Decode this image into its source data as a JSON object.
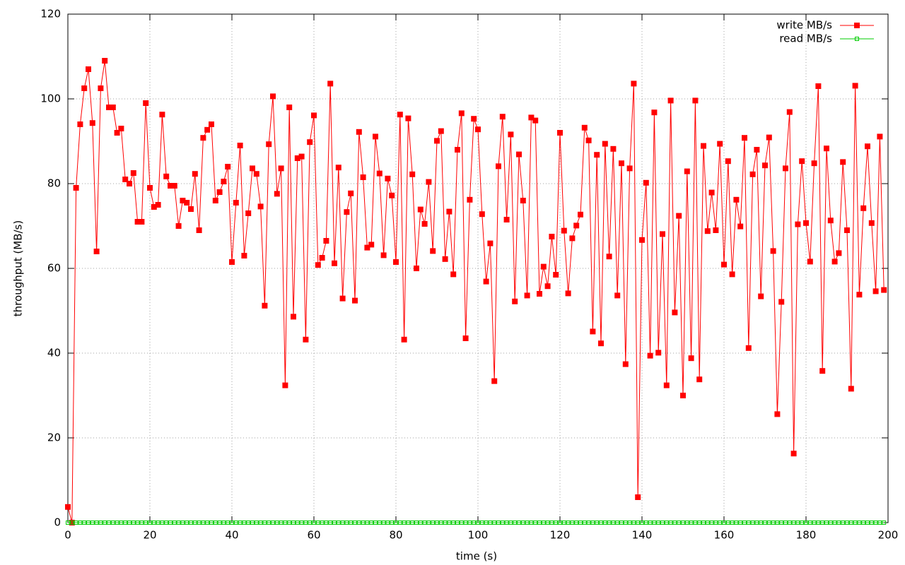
{
  "chart_data": {
    "type": "line",
    "xlabel": "time (s)",
    "ylabel": "throughput (MB/s)",
    "x": [
      0,
      1,
      2,
      3,
      4,
      5,
      6,
      7,
      8,
      9,
      10,
      11,
      12,
      13,
      14,
      15,
      16,
      17,
      18,
      19,
      20,
      21,
      22,
      23,
      24,
      25,
      26,
      27,
      28,
      29,
      30,
      31,
      32,
      33,
      34,
      35,
      36,
      37,
      38,
      39,
      40,
      41,
      42,
      43,
      44,
      45,
      46,
      47,
      48,
      49,
      50,
      51,
      52,
      53,
      54,
      55,
      56,
      57,
      58,
      59,
      60,
      61,
      62,
      63,
      64,
      65,
      66,
      67,
      68,
      69,
      70,
      71,
      72,
      73,
      74,
      75,
      76,
      77,
      78,
      79,
      80,
      81,
      82,
      83,
      84,
      85,
      86,
      87,
      88,
      89,
      90,
      91,
      92,
      93,
      94,
      95,
      96,
      97,
      98,
      99,
      100,
      101,
      102,
      103,
      104,
      105,
      106,
      107,
      108,
      109,
      110,
      111,
      112,
      113,
      114,
      115,
      116,
      117,
      118,
      119,
      120,
      121,
      122,
      123,
      124,
      125,
      126,
      127,
      128,
      129,
      130,
      131,
      132,
      133,
      134,
      135,
      136,
      137,
      138,
      139,
      140,
      141,
      142,
      143,
      144,
      145,
      146,
      147,
      148,
      149,
      150,
      151,
      152,
      153,
      154,
      155,
      156,
      157,
      158,
      159,
      160,
      161,
      162,
      163,
      164,
      165,
      166,
      167,
      168,
      169,
      170,
      171,
      172,
      173,
      174,
      175,
      176,
      177,
      178,
      179,
      180,
      181,
      182,
      183,
      184,
      185,
      186,
      187,
      188,
      189,
      190,
      191,
      192,
      193,
      194,
      195,
      196,
      197,
      198,
      199
    ],
    "series": [
      {
        "name": "write MB/s",
        "color": "#ff0000",
        "marker": "filled-square",
        "values": [
          3.7,
          0,
          79,
          94,
          102.5,
          107,
          94.3,
          64,
          102.5,
          109,
          98,
          98,
          92,
          93,
          81,
          80,
          82.5,
          71,
          71,
          99,
          79,
          74.5,
          75,
          96.3,
          81.7,
          79.5,
          79.5,
          70,
          76,
          75.5,
          74,
          82.3,
          69,
          90.8,
          92.7,
          94,
          76,
          78,
          80.5,
          84,
          61.5,
          75.5,
          89,
          63,
          73,
          83.6,
          82.3,
          74.6,
          51.2,
          89.3,
          100.6,
          77.6,
          83.6,
          32.4,
          98,
          48.6,
          86,
          86.4,
          43.2,
          89.8,
          96.1,
          60.8,
          62.5,
          66.5,
          103.6,
          61.2,
          83.8,
          52.9,
          73.3,
          77.7,
          52.4,
          92.2,
          81.5,
          64.9,
          65.6,
          91.1,
          82.4,
          63.1,
          81.2,
          77.2,
          61.5,
          96.3,
          43.2,
          95.4,
          82.2,
          60,
          73.9,
          70.5,
          80.4,
          64.1,
          90.1,
          92.4,
          62.2,
          73.4,
          58.6,
          88,
          96.6,
          43.5,
          76.2,
          95.3,
          92.8,
          72.8,
          56.9,
          65.9,
          33.4,
          84.1,
          95.8,
          71.5,
          91.6,
          52.2,
          86.9,
          76,
          53.6,
          95.6,
          94.9,
          54,
          60.4,
          55.8,
          67.5,
          58.5,
          92,
          68.9,
          54.1,
          67.1,
          70.1,
          72.7,
          93.2,
          90.2,
          45.1,
          86.8,
          42.3,
          89.4,
          62.8,
          88.2,
          53.6,
          84.8,
          37.4,
          83.6,
          103.6,
          6,
          66.7,
          80.2,
          39.4,
          96.8,
          40.1,
          68.1,
          32.4,
          99.6,
          49.6,
          72.4,
          30,
          82.9,
          38.8,
          99.6,
          33.8,
          88.9,
          68.8,
          77.9,
          69,
          89.4,
          60.9,
          85.3,
          58.6,
          76.2,
          69.9,
          90.8,
          41.2,
          82.2,
          88,
          53.4,
          84.3,
          90.9,
          64.1,
          25.6,
          52.1,
          83.6,
          96.9,
          16.3,
          70.4,
          85.3,
          70.7,
          61.6,
          84.8,
          103,
          35.8,
          88.3,
          71.3,
          61.6,
          63.6,
          85.1,
          69,
          31.6,
          103.1,
          53.8,
          74.2,
          88.8,
          70.7,
          54.6,
          91.1,
          54.9
        ]
      },
      {
        "name": "read MB/s",
        "color": "#00cc00",
        "marker": "open-square",
        "values": [
          0,
          0,
          0,
          0,
          0,
          0,
          0,
          0,
          0,
          0,
          0,
          0,
          0,
          0,
          0,
          0,
          0,
          0,
          0,
          0,
          0,
          0,
          0,
          0,
          0,
          0,
          0,
          0,
          0,
          0,
          0,
          0,
          0,
          0,
          0,
          0,
          0,
          0,
          0,
          0,
          0,
          0,
          0,
          0,
          0,
          0,
          0,
          0,
          0,
          0,
          0,
          0,
          0,
          0,
          0,
          0,
          0,
          0,
          0,
          0,
          0,
          0,
          0,
          0,
          0,
          0,
          0,
          0,
          0,
          0,
          0,
          0,
          0,
          0,
          0,
          0,
          0,
          0,
          0,
          0,
          0,
          0,
          0,
          0,
          0,
          0,
          0,
          0,
          0,
          0,
          0,
          0,
          0,
          0,
          0,
          0,
          0,
          0,
          0,
          0,
          0,
          0,
          0,
          0,
          0,
          0,
          0,
          0,
          0,
          0,
          0,
          0,
          0,
          0,
          0,
          0,
          0,
          0,
          0,
          0,
          0,
          0,
          0,
          0,
          0,
          0,
          0,
          0,
          0,
          0,
          0,
          0,
          0,
          0,
          0,
          0,
          0,
          0,
          0,
          0,
          0,
          0,
          0,
          0,
          0,
          0,
          0,
          0,
          0,
          0,
          0,
          0,
          0,
          0,
          0,
          0,
          0,
          0,
          0,
          0,
          0,
          0,
          0,
          0,
          0,
          0,
          0,
          0,
          0,
          0,
          0,
          0,
          0,
          0,
          0,
          0,
          0,
          0,
          0,
          0,
          0,
          0,
          0,
          0,
          0,
          0,
          0,
          0,
          0,
          0,
          0,
          0,
          0,
          0,
          0,
          0,
          0,
          0,
          0,
          0
        ]
      }
    ],
    "xlim": [
      0,
      200
    ],
    "ylim": [
      0,
      120
    ],
    "xticks": [
      0,
      20,
      40,
      60,
      80,
      100,
      120,
      140,
      160,
      180,
      200
    ],
    "yticks": [
      0,
      20,
      40,
      60,
      80,
      100,
      120
    ],
    "grid": true,
    "legend": "top-right"
  }
}
